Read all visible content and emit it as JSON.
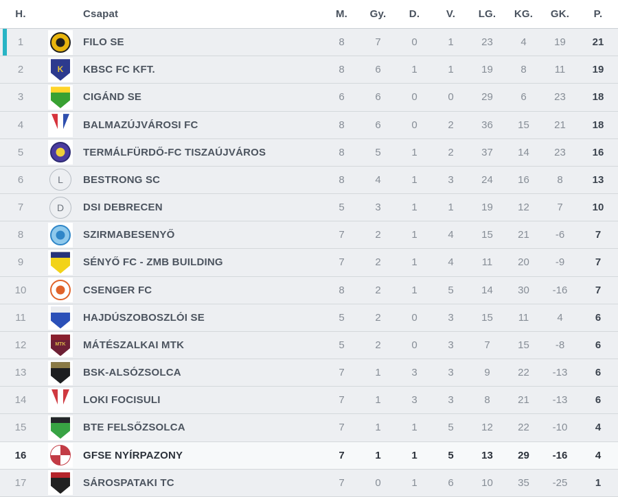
{
  "colors": {
    "promotion_accent": "#28b4c5",
    "row_background": "#edeff2",
    "highlighted_row_background": "#f7f9fa",
    "header_text": "#49525e",
    "team_text": "#4c545f",
    "muted_number_text": "#868d96",
    "points_text": "#3b434e"
  },
  "table": {
    "columns": [
      {
        "key": "pos",
        "label": "H."
      },
      {
        "key": "team",
        "label": "Csapat"
      },
      {
        "key": "m",
        "label": "M."
      },
      {
        "key": "gy",
        "label": "Gy."
      },
      {
        "key": "d",
        "label": "D."
      },
      {
        "key": "v",
        "label": "V."
      },
      {
        "key": "lg",
        "label": "LG."
      },
      {
        "key": "kg",
        "label": "KG."
      },
      {
        "key": "gk",
        "label": "GK."
      },
      {
        "key": "p",
        "label": "P."
      }
    ],
    "rows": [
      {
        "pos": 1,
        "team": "FILO SE",
        "m": 8,
        "gy": 7,
        "d": 0,
        "v": 1,
        "lg": 23,
        "kg": 4,
        "gk": 19,
        "p": 21,
        "promotion_spot": true,
        "logo": {
          "shape": "circle",
          "c1": "#e8b40d",
          "c2": "#1e1e1e",
          "c3": "#1e1e1e"
        }
      },
      {
        "pos": 2,
        "team": "KBSC FC KFT.",
        "m": 8,
        "gy": 6,
        "d": 1,
        "v": 1,
        "lg": 19,
        "kg": 8,
        "gk": 11,
        "p": 19,
        "logo": {
          "shape": "shield",
          "c1": "#2c3a8e",
          "c2": "#2c3a8e",
          "letter": "K",
          "letter_color": "#e3c23a",
          "letter_size": "12px"
        }
      },
      {
        "pos": 3,
        "team": "CIGÁND SE",
        "m": 6,
        "gy": 6,
        "d": 0,
        "v": 0,
        "lg": 29,
        "kg": 6,
        "gk": 23,
        "p": 18,
        "logo": {
          "shape": "shield",
          "c1": "#39a132",
          "c2": "#ffd42a"
        }
      },
      {
        "pos": 4,
        "team": "BALMAZÚJVÁROSI FC",
        "m": 8,
        "gy": 6,
        "d": 0,
        "v": 2,
        "lg": 36,
        "kg": 15,
        "gk": 21,
        "p": 18,
        "logo": {
          "shape": "pennant",
          "c1": "#d6333c",
          "c2": "#2e4fae",
          "c3": "#ffffff"
        }
      },
      {
        "pos": 5,
        "team": "TERMÁLFÜRDŐ-FC TISZAÚJVÁROS",
        "m": 8,
        "gy": 5,
        "d": 1,
        "v": 2,
        "lg": 37,
        "kg": 14,
        "gk": 23,
        "p": 16,
        "logo": {
          "shape": "circle",
          "c1": "#4a3b9f",
          "c2": "#2c2a72",
          "c3": "#efcf39"
        }
      },
      {
        "pos": 6,
        "team": "BESTRONG SC",
        "m": 8,
        "gy": 4,
        "d": 1,
        "v": 3,
        "lg": 24,
        "kg": 16,
        "gk": 8,
        "p": 13,
        "logo": {
          "shape": "letter-circle",
          "letter": "L"
        }
      },
      {
        "pos": 7,
        "team": "DSI DEBRECEN",
        "m": 5,
        "gy": 3,
        "d": 1,
        "v": 1,
        "lg": 19,
        "kg": 12,
        "gk": 7,
        "p": 10,
        "logo": {
          "shape": "letter-circle",
          "letter": "D"
        }
      },
      {
        "pos": 8,
        "team": "SZIRMABESENYŐ",
        "m": 7,
        "gy": 2,
        "d": 1,
        "v": 4,
        "lg": 15,
        "kg": 21,
        "gk": -6,
        "p": 7,
        "logo": {
          "shape": "circle",
          "c1": "#8fc9ec",
          "c2": "#2f86c8",
          "c3": "#2f86c8"
        }
      },
      {
        "pos": 9,
        "team": "SÉNYŐ FC - ZMB BUILDING",
        "m": 7,
        "gy": 2,
        "d": 1,
        "v": 4,
        "lg": 11,
        "kg": 20,
        "gk": -9,
        "p": 7,
        "logo": {
          "shape": "shield",
          "c1": "#f2d319",
          "c2": "#27337a"
        }
      },
      {
        "pos": 10,
        "team": "CSENGER FC",
        "m": 8,
        "gy": 2,
        "d": 1,
        "v": 5,
        "lg": 14,
        "kg": 30,
        "gk": -16,
        "p": 7,
        "logo": {
          "shape": "circle",
          "c1": "#ffffff",
          "c2": "#e0632a",
          "c3": "#e0632a"
        }
      },
      {
        "pos": 11,
        "team": "HAJDÚSZOBOSZLÓI SE",
        "m": 5,
        "gy": 2,
        "d": 0,
        "v": 3,
        "lg": 15,
        "kg": 11,
        "gk": 4,
        "p": 6,
        "logo": {
          "shape": "shield",
          "c1": "#2b50b8",
          "c2": "#e9ebee"
        }
      },
      {
        "pos": 12,
        "team": "MÁTÉSZALKAI MTK",
        "m": 5,
        "gy": 2,
        "d": 0,
        "v": 3,
        "lg": 7,
        "kg": 15,
        "gk": -8,
        "p": 6,
        "logo": {
          "shape": "shield",
          "c1": "#6d2035",
          "c2": "#8a1f2d",
          "letter": "MTK",
          "letter_color": "#d9b64a",
          "letter_size": "7px"
        }
      },
      {
        "pos": 13,
        "team": "BSK-ALSÓZSOLCA",
        "m": 7,
        "gy": 1,
        "d": 3,
        "v": 3,
        "lg": 9,
        "kg": 22,
        "gk": -13,
        "p": 6,
        "logo": {
          "shape": "shield",
          "c1": "#1d1e20",
          "c2": "#8a7a45"
        }
      },
      {
        "pos": 14,
        "team": "LOKI FOCISULI",
        "m": 7,
        "gy": 1,
        "d": 3,
        "v": 3,
        "lg": 8,
        "kg": 21,
        "gk": -13,
        "p": 6,
        "logo": {
          "shape": "pennant",
          "c1": "#cf3940",
          "c2": "#cf3940",
          "c3": "#ffffff"
        }
      },
      {
        "pos": 15,
        "team": "BTE FELSŐZSOLCA",
        "m": 7,
        "gy": 1,
        "d": 1,
        "v": 5,
        "lg": 12,
        "kg": 22,
        "gk": -10,
        "p": 4,
        "logo": {
          "shape": "shield",
          "c1": "#38a344",
          "c2": "#24262a"
        }
      },
      {
        "pos": 16,
        "team": "GFSE NYÍRPAZONY",
        "m": 7,
        "gy": 1,
        "d": 1,
        "v": 5,
        "lg": 13,
        "kg": 29,
        "gk": -16,
        "p": 4,
        "is_highlighted": true,
        "logo": {
          "shape": "pinwheel",
          "c1": "#c23b45"
        }
      },
      {
        "pos": 17,
        "team": "SÁROSPATAKI TC",
        "m": 7,
        "gy": 0,
        "d": 1,
        "v": 6,
        "lg": 10,
        "kg": 35,
        "gk": -25,
        "p": 1,
        "logo": {
          "shape": "shield",
          "c1": "#212121",
          "c2": "#b5242b"
        }
      }
    ]
  }
}
